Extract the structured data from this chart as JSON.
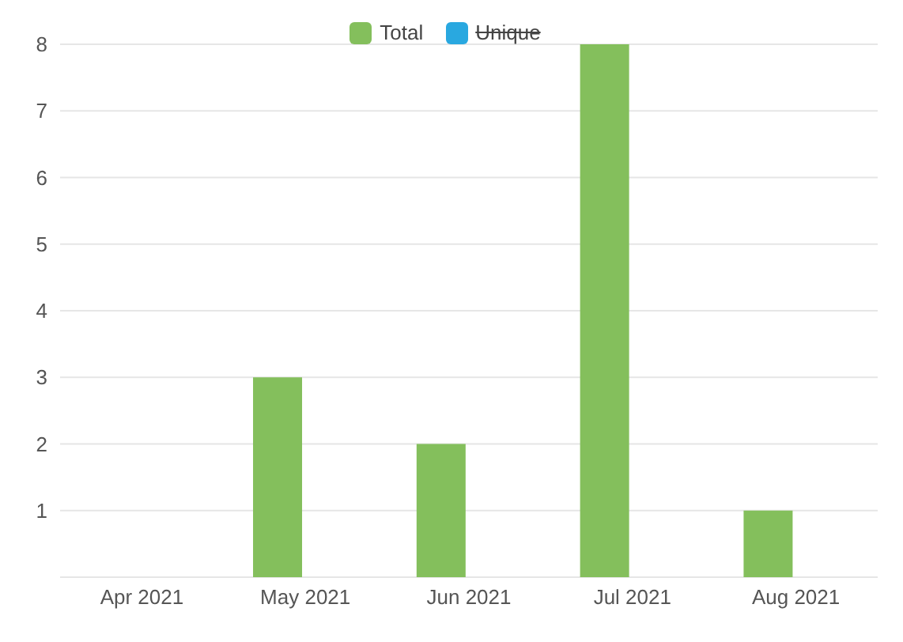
{
  "chart_data": {
    "type": "bar",
    "categories": [
      "Apr 2021",
      "May 2021",
      "Jun 2021",
      "Jul 2021",
      "Aug 2021"
    ],
    "series": [
      {
        "name": "Total",
        "color": "#84bf5c",
        "values": [
          0,
          3,
          2,
          8,
          1
        ]
      },
      {
        "name": "Unique",
        "color": "#29a8e0",
        "values": [
          null,
          null,
          null,
          null,
          null
        ]
      }
    ],
    "ylim": [
      0,
      8
    ],
    "yticks": [
      1,
      2,
      3,
      4,
      5,
      6,
      7,
      8
    ],
    "grid": "y",
    "legend": "top"
  }
}
